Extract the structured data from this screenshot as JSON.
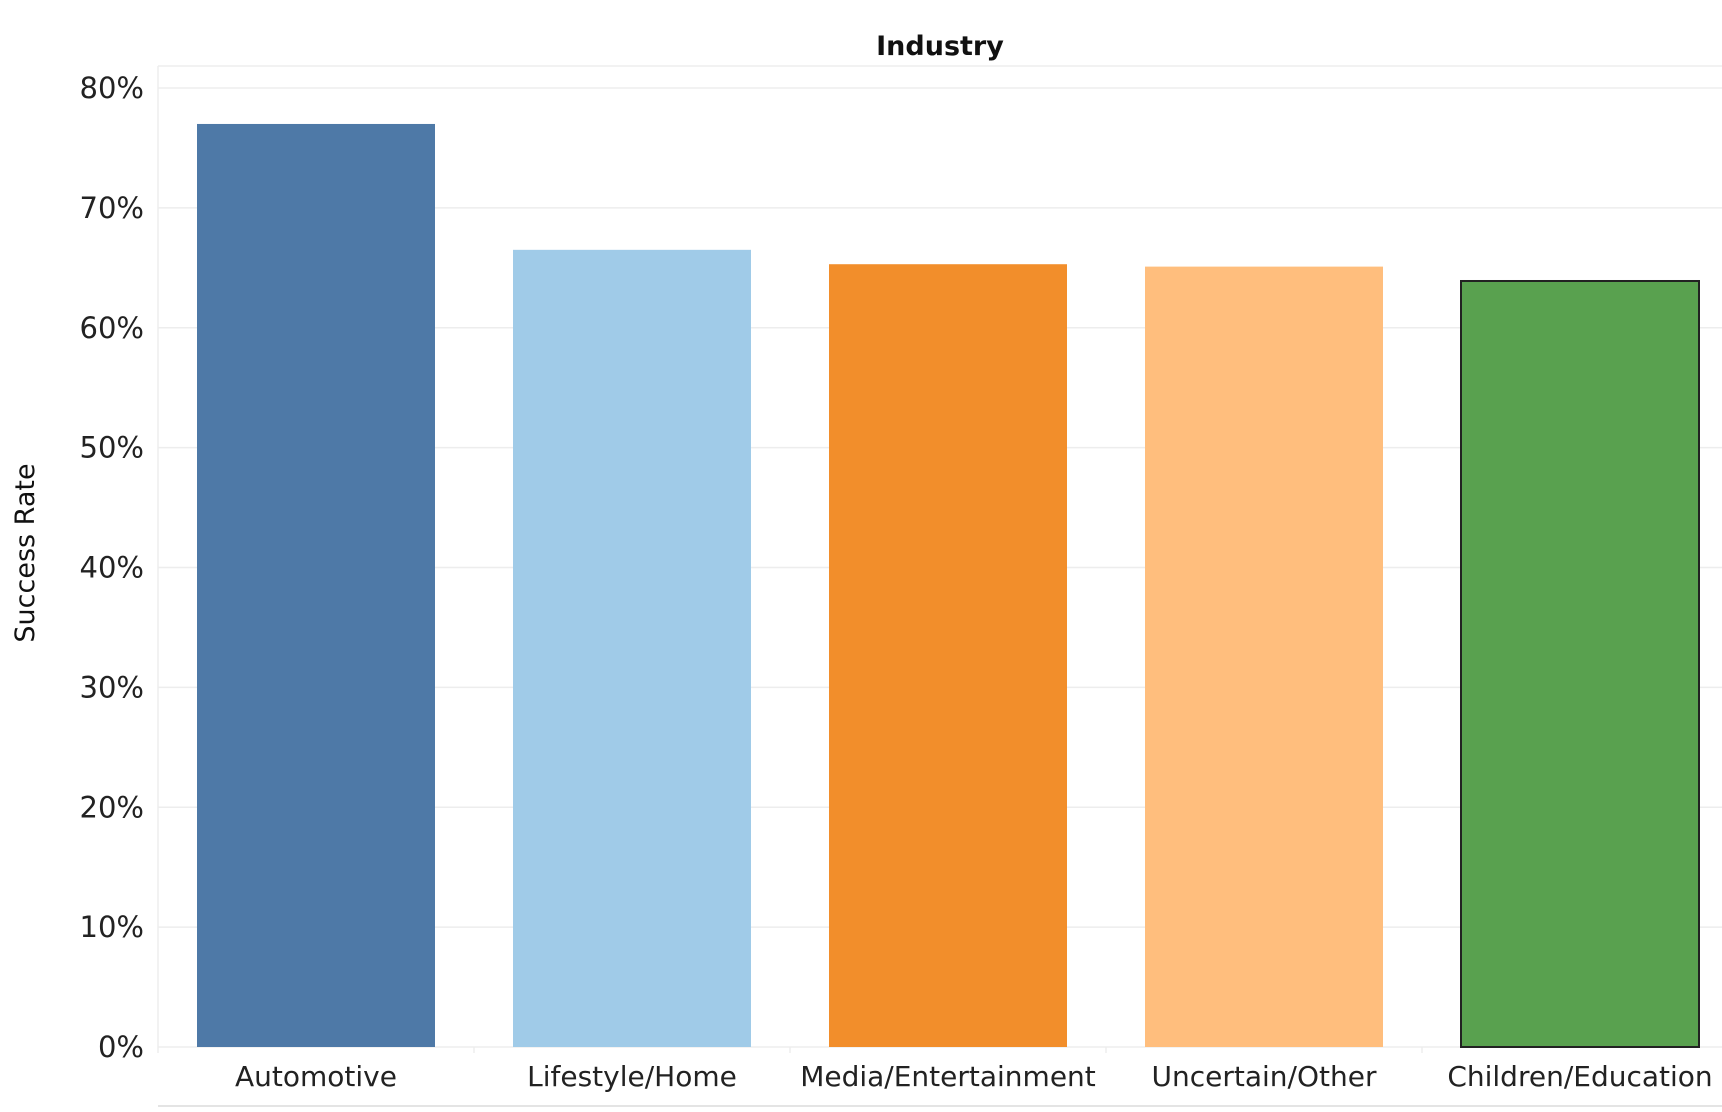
{
  "chart_data": {
    "type": "bar",
    "title": "Industry",
    "xlabel": "",
    "ylabel": "Success Rate",
    "categories": [
      "Automotive",
      "Lifestyle/Home",
      "Media/Entertainment",
      "Uncertain/Other",
      "Children/Education"
    ],
    "values": [
      77.0,
      66.5,
      65.3,
      65.1,
      63.9
    ],
    "colors": [
      "#4e79a7",
      "#a0cbe8",
      "#f28e2b",
      "#ffbe7d",
      "#59a14f"
    ],
    "highlighted": "Children/Education",
    "ylim": [
      0,
      80
    ],
    "yticks": [
      0,
      10,
      20,
      30,
      40,
      50,
      60,
      70,
      80
    ],
    "yticklabels": [
      "0%",
      "10%",
      "20%",
      "30%",
      "40%",
      "50%",
      "60%",
      "70%",
      "80%"
    ],
    "grid": true,
    "legend": "none"
  }
}
